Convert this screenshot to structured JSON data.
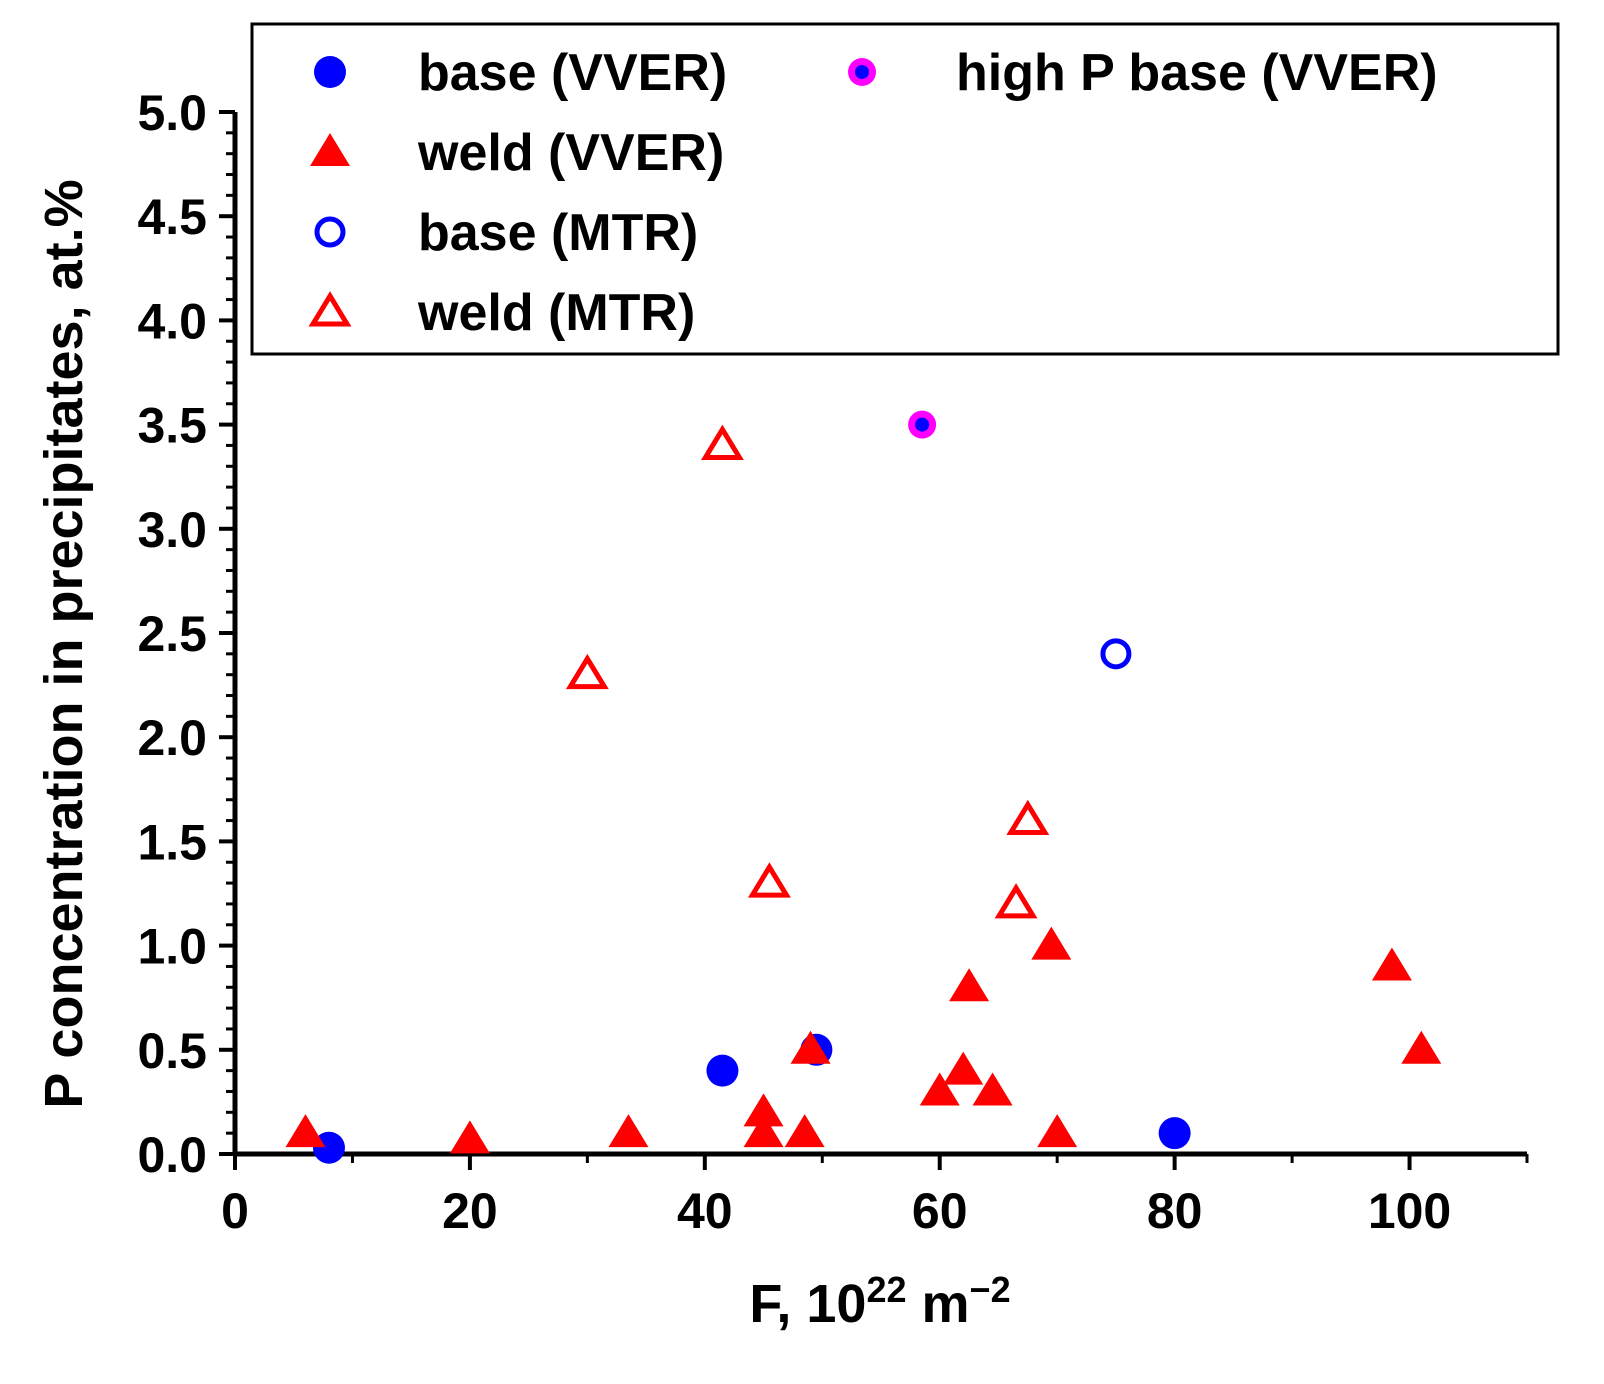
{
  "chart_data": {
    "type": "scatter",
    "title": "",
    "xlabel": "F, 10",
    "xlabel_sup1": "22",
    "xlabel_mid": " m",
    "xlabel_sup2": "−2",
    "ylabel": "P concentration in precipitates, at.%",
    "xlim": [
      0,
      110
    ],
    "ylim": [
      0,
      5.0
    ],
    "x_ticks": [
      0,
      20,
      40,
      60,
      80,
      100
    ],
    "y_ticks": [
      0.0,
      0.5,
      1.0,
      1.5,
      2.0,
      2.5,
      3.0,
      3.5,
      4.0,
      4.5,
      5.0
    ],
    "x_tick_labels": [
      "0",
      "20",
      "40",
      "60",
      "80",
      "100"
    ],
    "y_tick_labels": [
      "0.0",
      "0.5",
      "1.0",
      "1.5",
      "2.0",
      "2.5",
      "3.0",
      "3.5",
      "4.0",
      "4.5",
      "5.0"
    ],
    "grid": false,
    "legend_position": "top",
    "series": [
      {
        "name": "base (VVER)",
        "marker": "circle-filled",
        "color": "#0000ff",
        "points": [
          [
            8,
            0.03
          ],
          [
            41.5,
            0.4
          ],
          [
            49.5,
            0.5
          ],
          [
            80,
            0.1
          ]
        ]
      },
      {
        "name": "weld (VVER)",
        "marker": "triangle-filled",
        "color": "#ff0000",
        "points": [
          [
            6,
            0.1
          ],
          [
            20,
            0.07
          ],
          [
            33.5,
            0.1
          ],
          [
            45,
            0.2
          ],
          [
            45,
            0.1
          ],
          [
            48.5,
            0.1
          ],
          [
            49,
            0.5
          ],
          [
            60,
            0.3
          ],
          [
            62,
            0.4
          ],
          [
            62.5,
            0.8
          ],
          [
            64.5,
            0.3
          ],
          [
            69.5,
            1.0
          ],
          [
            70,
            0.1
          ],
          [
            98.5,
            0.9
          ],
          [
            101,
            0.5
          ]
        ]
      },
      {
        "name": "base (MTR)",
        "marker": "circle-open",
        "color": "#0000ff",
        "points": [
          [
            75,
            2.4
          ]
        ]
      },
      {
        "name": "weld (MTR)",
        "marker": "triangle-open",
        "color": "#ff0000",
        "points": [
          [
            30,
            2.3
          ],
          [
            41.5,
            3.4
          ],
          [
            45.5,
            1.3
          ],
          [
            66.5,
            1.2
          ],
          [
            67.5,
            1.6
          ]
        ]
      },
      {
        "name": "high P base (VVER)",
        "marker": "circle-magenta-ring-blue-dot",
        "color": "#ff00ff",
        "inner_color": "#0000ff",
        "points": [
          [
            58.5,
            3.5
          ]
        ]
      }
    ]
  }
}
